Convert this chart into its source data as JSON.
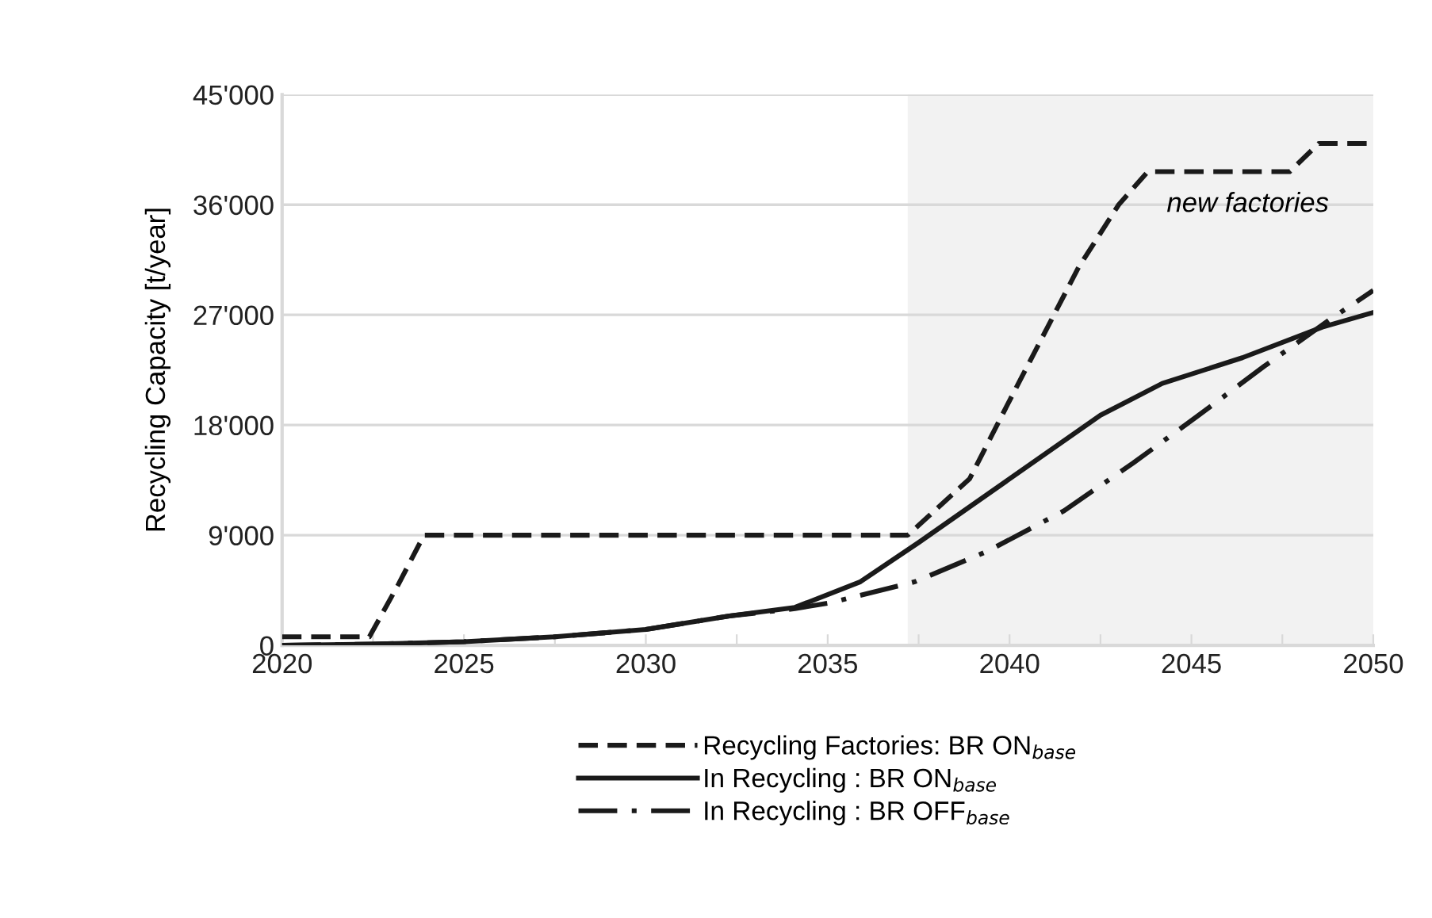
{
  "chart_data": {
    "type": "line",
    "ylabel": "Recycling Capacity [t/year]",
    "xlim": [
      2020,
      2050
    ],
    "xticks": [
      2020,
      {
        "value": 2022.5,
        "label": null
      },
      2025,
      {
        "value": 2027.5,
        "label": null
      },
      2030,
      {
        "value": 2032.5,
        "label": null
      },
      2035,
      {
        "value": 2037.5,
        "label": null
      },
      2040,
      {
        "value": 2042.5,
        "label": null
      },
      2045,
      {
        "value": 2047.5,
        "label": null
      },
      2050
    ],
    "ylim": [
      0,
      45000
    ],
    "yticks": [
      0,
      {
        "value": 9000,
        "label": "9'000"
      },
      {
        "value": 18000,
        "label": "18'000"
      },
      {
        "value": 27000,
        "label": "27'000"
      },
      {
        "value": 36000,
        "label": "36'000"
      },
      {
        "value": 45000,
        "label": "45'000"
      }
    ],
    "grid": "y",
    "legend": "bottom",
    "marker": "none",
    "bands": [
      {
        "axis": "x",
        "from": 2037.2,
        "to": 2050,
        "label": null,
        "color": "#f2f2f2"
      }
    ],
    "annotations": [
      "new factories"
    ],
    "series": [
      {
        "name": "Recycling Factories: BR ON$_{base}$",
        "color": "#1a1a1a",
        "line_style": "dashed",
        "x": [
          2020,
          2022.4,
          2023.2,
          2023.9,
          2037.2,
          2038.9,
          2040,
          2041.9,
          2043,
          2043.8,
          2047.7,
          2048.5,
          2050
        ],
        "values": [
          700,
          700,
          5000,
          9000,
          9000,
          13600,
          20000,
          30900,
          36000,
          38700,
          38700,
          41000,
          41000
        ]
      },
      {
        "name": "In Recycling : BR ON$_{base}$",
        "color": "#1a1a1a",
        "line_style": "solid",
        "x": [
          2020,
          2022.5,
          2025,
          2027.5,
          2030,
          2032.3,
          2034.1,
          2035.9,
          2037.5,
          2040,
          2042.5,
          2044.2,
          2046.4,
          2048.6,
          2050
        ],
        "values": [
          0,
          100,
          300,
          700,
          1300,
          2400,
          3100,
          5200,
          8400,
          13600,
          18800,
          21400,
          23500,
          26000,
          27200
        ]
      },
      {
        "name": "In Recycling : BR OFF$_{base}$",
        "color": "#1a1a1a",
        "line_style": "dashdot",
        "x": [
          2020,
          2022.5,
          2025,
          2027.5,
          2030,
          2032.3,
          2034.1,
          2035.1,
          2037.4,
          2039.4,
          2041.5,
          2043.4,
          2045.2,
          2047,
          2048.8,
          2050
        ],
        "values": [
          0,
          100,
          300,
          700,
          1300,
          2400,
          3000,
          3500,
          5200,
          7700,
          11000,
          14900,
          18800,
          22800,
          26600,
          29000
        ]
      }
    ]
  }
}
